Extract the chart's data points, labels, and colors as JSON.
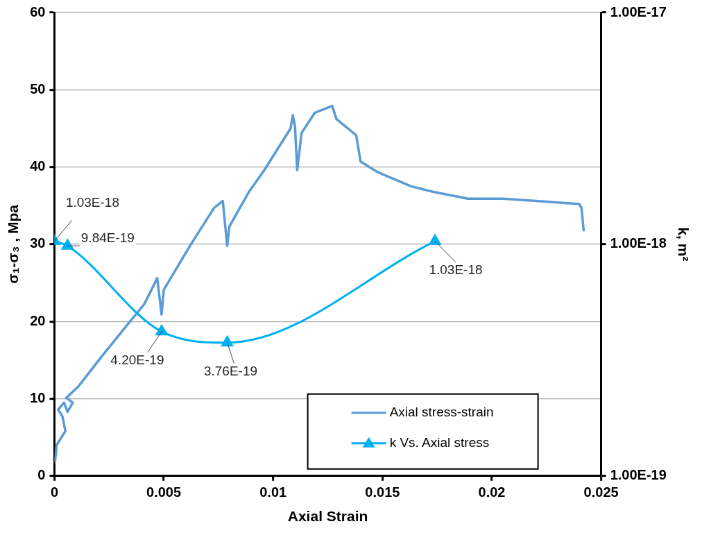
{
  "chart_data": {
    "type": "line",
    "xlabel": "Axial Strain",
    "ylabel": "σ₁-σ₃ , Mpa",
    "y2label": "k, m²",
    "xlim": [
      0,
      0.025
    ],
    "xticks": [
      0,
      0.005,
      0.01,
      0.015,
      0.02,
      0.025
    ],
    "ylim": [
      0,
      60
    ],
    "yticks": [
      0,
      10,
      20,
      30,
      40,
      50,
      60
    ],
    "y2lim": [
      1e-19,
      1e-17
    ],
    "y2ticks": [
      {
        "value": 1e-19,
        "label": "1.00E-19"
      },
      {
        "value": 1e-18,
        "label": "1.00E-18"
      },
      {
        "value": 1e-17,
        "label": "1.00E-17"
      }
    ],
    "log": "y2",
    "grid": "y",
    "legend": "bottom right",
    "series": [
      {
        "name": "Axial stress-strain",
        "color": "#5b9bd5",
        "marker": "none",
        "x": [
          3e-05,
          0.0001,
          0.0005,
          0.00037,
          0.00017,
          0.00044,
          0.0006,
          0.00084,
          0.00054,
          0.0011,
          0.0022,
          0.0034,
          0.0041,
          0.0047,
          0.0049,
          0.005,
          0.0062,
          0.0073,
          0.0077,
          0.0079,
          0.008,
          0.0089,
          0.0096,
          0.0108,
          0.0109,
          0.011,
          0.0111,
          0.0113,
          0.0119,
          0.0127,
          0.0129,
          0.0138,
          0.014,
          0.0148,
          0.0159,
          0.0163,
          0.0173,
          0.0189,
          0.0205,
          0.024,
          0.0241,
          0.0242
        ],
        "values": [
          1.9,
          4.0,
          5.8,
          7.7,
          8.6,
          9.5,
          8.3,
          9.5,
          10.1,
          11.6,
          15.6,
          19.8,
          22.2,
          25.6,
          20.9,
          24.1,
          29.8,
          34.7,
          35.6,
          29.8,
          32.3,
          36.8,
          39.6,
          45.0,
          46.7,
          45.3,
          39.6,
          44.4,
          47.0,
          47.9,
          46.2,
          44.1,
          40.7,
          39.3,
          38.0,
          37.5,
          36.8,
          35.9,
          35.9,
          35.2,
          34.7,
          31.8
        ]
      },
      {
        "name": "k Vs. Axial stress",
        "color": "#00b0f0",
        "marker": "triangle",
        "axis": "y2",
        "x": [
          0,
          0.0006,
          0.0049,
          0.0079,
          0.0174
        ],
        "values": [
          1.03e-18,
          9.84e-19,
          4.2e-19,
          3.76e-19,
          1.03e-18
        ],
        "value_labels": [
          "1.03E-18",
          "9.84E-19",
          "4.20E-19",
          "3.76E-19",
          "1.03E-18"
        ]
      }
    ]
  }
}
